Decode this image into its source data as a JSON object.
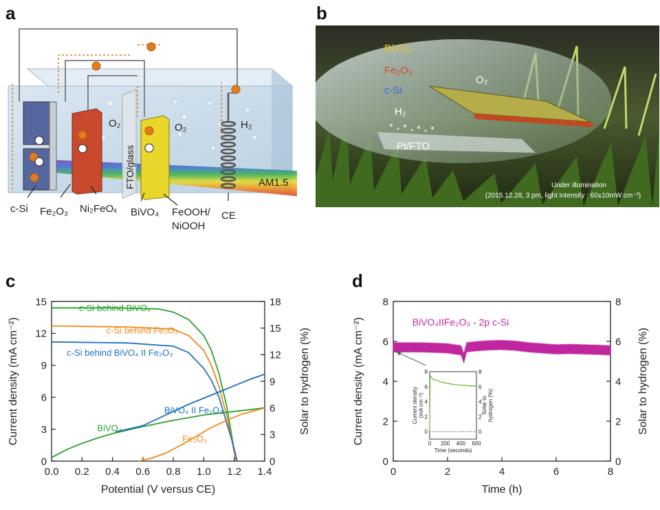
{
  "panels": {
    "a": {
      "letter": "a",
      "labels": {
        "csi": "c-Si",
        "fe2o3": "Fe₂O₃",
        "ni2feox": "Ni₂FeOₓ",
        "bivo4": "BiVO₄",
        "feooh": "FeOOH/",
        "niooh": "NiOOH",
        "ce": "CE",
        "fto": "FTO/glass",
        "o2_left": "O₂",
        "o2_right": "O₂",
        "h2": "H₂",
        "am15": "AM1.5"
      },
      "colors": {
        "tank": "#c9dbe9",
        "fe2o3": "#c8492c",
        "bivo4": "#e8d62a",
        "csi": "#5a6ea8",
        "wire": "#777777",
        "electron": "#e07b1e"
      }
    },
    "b": {
      "letter": "b",
      "labels": {
        "bivo4": "BiVO₄",
        "fe2o3": "Fe₂O₃",
        "csi": "c-Si",
        "h2": "H₂",
        "o2": "O₂",
        "ptfto": "Pt/FTO",
        "caption1": "Under illumination",
        "caption2": "(2015.12.28, 3 pm, light intensity : 60±10mW cm⁻²)"
      }
    },
    "c": {
      "letter": "c"
    },
    "d": {
      "letter": "d"
    }
  },
  "chart_data": [
    {
      "id": "c",
      "type": "line",
      "xlabel": "Potential (V versus CE)",
      "ylabel": "Current density (mA cm⁻²)",
      "y2label": "Solar to hydrogen (%)",
      "xlim": [
        0,
        1.4
      ],
      "ylim": [
        0,
        15
      ],
      "y2lim": [
        0,
        18
      ],
      "xticks": [
        0.0,
        0.2,
        0.4,
        0.6,
        0.8,
        1.0,
        1.2,
        1.4
      ],
      "xtick_labels": [
        "0.0",
        "0.2",
        "0.4",
        "0.6",
        "0.8",
        "1.0",
        "1.2",
        "1.4"
      ],
      "yticks": [
        0,
        3,
        6,
        9,
        12,
        15
      ],
      "ytick_labels": [
        "0",
        "3",
        "6",
        "9",
        "12",
        "15"
      ],
      "y2ticks": [
        0,
        3,
        6,
        9,
        12,
        15,
        18
      ],
      "y2tick_labels": [
        "0",
        "3",
        "6",
        "9",
        "12",
        "15",
        "18"
      ],
      "series": [
        {
          "name": "c-Si behind BiVO₄",
          "color": "#2ca02c",
          "axis": "left",
          "x": [
            0.0,
            0.4,
            0.7,
            0.8,
            0.9,
            1.0,
            1.05,
            1.1,
            1.15,
            1.18,
            1.21
          ],
          "y": [
            14.4,
            14.4,
            14.3,
            14.0,
            13.3,
            11.8,
            10.4,
            8.2,
            5.2,
            2.7,
            0.0
          ]
        },
        {
          "name": "c-Si behind Fe₂O₃",
          "color": "#f0891a",
          "axis": "left",
          "x": [
            0.0,
            0.5,
            0.8,
            0.9,
            1.0,
            1.05,
            1.1,
            1.15,
            1.18,
            1.21
          ],
          "y": [
            12.7,
            12.6,
            12.4,
            11.8,
            10.4,
            9.0,
            7.0,
            4.3,
            2.3,
            0.0
          ]
        },
        {
          "name": "c-Si behind BiVO₄ II Fe₂O₃",
          "color": "#1f6fc4",
          "axis": "left",
          "x": [
            0.0,
            0.5,
            0.8,
            0.9,
            1.0,
            1.05,
            1.1,
            1.15,
            1.19,
            1.22
          ],
          "y": [
            11.2,
            11.1,
            10.8,
            10.2,
            8.7,
            7.6,
            6.0,
            3.6,
            1.7,
            0.0
          ]
        },
        {
          "name": "BiVO₄",
          "color": "#2ca02c",
          "axis": "right",
          "x": [
            0.0,
            0.1,
            0.2,
            0.3,
            0.4,
            0.6,
            0.8,
            1.0,
            1.2,
            1.4
          ],
          "y": [
            0.4,
            1.3,
            2.0,
            2.6,
            3.1,
            3.9,
            4.6,
            5.2,
            5.6,
            6.0
          ]
        },
        {
          "name": "Fe₂O₃",
          "color": "#f0891a",
          "axis": "right",
          "x": [
            0.57,
            0.65,
            0.75,
            0.85,
            0.95,
            1.05,
            1.15,
            1.25,
            1.4
          ],
          "y": [
            0.0,
            0.3,
            0.9,
            1.8,
            2.8,
            3.8,
            4.6,
            5.3,
            6.0
          ]
        },
        {
          "name": "BiVO₄ II Fe₂O₃",
          "color": "#1f6fc4",
          "axis": "right",
          "x": [
            0.42,
            0.5,
            0.6,
            0.7,
            0.8,
            0.9,
            1.0,
            1.1,
            1.2,
            1.3,
            1.4
          ],
          "y": [
            3.3,
            3.6,
            4.0,
            4.8,
            5.6,
            6.4,
            7.1,
            7.8,
            8.5,
            9.2,
            9.8
          ]
        }
      ],
      "annotations": [
        {
          "text": "c-Si behind BiVO₄",
          "color": "#2ca02c",
          "x": 0.18,
          "y": 14.1
        },
        {
          "text": "c-Si behind Fe₂O₃",
          "color": "#f0891a",
          "x": 0.36,
          "y": 12.0
        },
        {
          "text": "c-Si behind BiVO₄ II Fe₂O₃",
          "color": "#1f6fc4",
          "x": 0.1,
          "y": 9.9
        },
        {
          "text": "BiVO₄ II Fe₂O₃",
          "color": "#1f6fc4",
          "x": 0.74,
          "y": 4.5
        },
        {
          "text": "BiVO₄",
          "color": "#2ca02c",
          "x": 0.3,
          "y": 2.8
        },
        {
          "text": "Fe₂O₃",
          "color": "#f0891a",
          "x": 0.86,
          "y": 1.8
        }
      ]
    },
    {
      "id": "d",
      "type": "line",
      "xlabel": "Time (h)",
      "ylabel": "Current density (mA cm⁻²)",
      "y2label": "Solar to hydrogen (%)",
      "xlim": [
        0,
        8
      ],
      "ylim": [
        0,
        8
      ],
      "y2lim": [
        0,
        8
      ],
      "xticks": [
        0,
        2,
        4,
        6,
        8
      ],
      "xtick_labels": [
        "0",
        "2",
        "4",
        "6",
        "8"
      ],
      "yticks": [
        0,
        2,
        4,
        6,
        8
      ],
      "ytick_labels": [
        "0",
        "2",
        "4",
        "6",
        "8"
      ],
      "y2ticks": [
        0,
        2,
        4,
        6,
        8
      ],
      "y2tick_labels": [
        "0",
        "2",
        "4",
        "6",
        "8"
      ],
      "series": [
        {
          "name": "BiVO₄IIFe₂O₃ - 2p c-Si",
          "color": "#c0279f",
          "x": [
            0.0,
            0.5,
            1.0,
            1.5,
            2.0,
            2.5,
            2.6,
            2.7,
            3.0,
            3.5,
            4.0,
            4.5,
            5.0,
            5.5,
            6.0,
            6.5,
            7.0,
            7.5,
            8.0
          ],
          "y": [
            5.7,
            5.7,
            5.7,
            5.68,
            5.65,
            5.55,
            5.15,
            5.7,
            5.75,
            5.8,
            5.82,
            5.78,
            5.7,
            5.65,
            5.6,
            5.62,
            5.6,
            5.58,
            5.55
          ]
        }
      ],
      "legend_label": "BiVO₄IIFe₂O₃ - 2p c-Si",
      "inset": {
        "type": "line",
        "xlabel": "Time (seconds)",
        "ylabel_line1": "Current density",
        "ylabel_line2": "(mA cm⁻²)",
        "y2label_line1": "Solar to",
        "y2label_line2": "hydrogen (%)",
        "xlim": [
          0,
          600
        ],
        "ylim": [
          -1,
          8
        ],
        "xticks": [
          0,
          200,
          400,
          600
        ],
        "xtick_labels": [
          "0",
          "200",
          "400",
          "600"
        ],
        "yticks": [
          0,
          2,
          4,
          6,
          8
        ],
        "ytick_labels": [
          "0",
          "2",
          "4",
          "6",
          "8"
        ],
        "y2tick_labels": [
          "0",
          "2",
          "4",
          "6",
          "8"
        ],
        "series": [
          {
            "name": "inset",
            "color": "#7cb342",
            "x": [
              0,
              5,
              10,
              20,
              40,
              60,
              80,
              100,
              150,
              200,
              300,
              400,
              450,
              500,
              600
            ],
            "y": [
              0.0,
              7.2,
              7.4,
              7.3,
              7.0,
              6.9,
              6.9,
              6.8,
              6.6,
              6.5,
              6.3,
              6.2,
              6.2,
              6.1,
              6.1
            ]
          }
        ]
      }
    }
  ]
}
